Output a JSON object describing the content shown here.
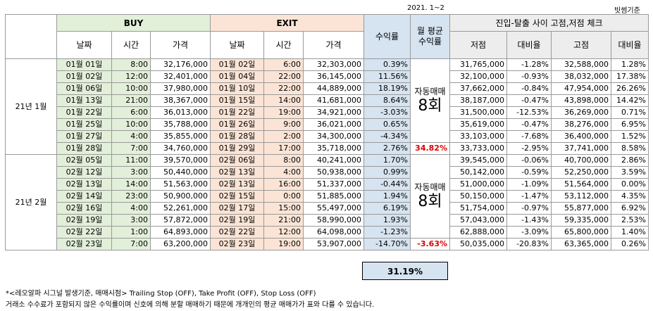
{
  "period_label": "2021. 1~2",
  "basis_label": "빗썸기준",
  "headers": {
    "buy": "BUY",
    "exit": "EXIT",
    "return": "수익률",
    "avg_return_line1": "월 평균",
    "avg_return_line2": "수익률",
    "check": "진입-탈출 사이 고점,저점 체크",
    "date": "날짜",
    "time": "시간",
    "price": "가격",
    "low": "저점",
    "ratio": "대비율",
    "high": "고점"
  },
  "months": [
    {
      "label": "21년 1월",
      "auto_label": "자동매매",
      "auto_count": "8회",
      "avg_return": "34.82%",
      "rows": [
        {
          "buy_date": "01월 01일",
          "buy_time": "8:00",
          "buy_price": "32,176,000",
          "exit_date": "01월 02일",
          "exit_time": "6:00",
          "exit_price": "32,303,000",
          "ret": "0.39%",
          "low": "31,765,000",
          "low_ratio": "-1.28%",
          "high": "32,588,000",
          "high_ratio": "1.28%"
        },
        {
          "buy_date": "01월 02일",
          "buy_time": "12:00",
          "buy_price": "32,401,000",
          "exit_date": "01월 04일",
          "exit_time": "22:00",
          "exit_price": "36,145,000",
          "ret": "11.56%",
          "low": "32,100,000",
          "low_ratio": "-0.93%",
          "high": "38,032,000",
          "high_ratio": "17.38%"
        },
        {
          "buy_date": "01월 06일",
          "buy_time": "10:00",
          "buy_price": "37,980,000",
          "exit_date": "01월 10일",
          "exit_time": "22:00",
          "exit_price": "44,889,000",
          "ret": "18.19%",
          "low": "37,662,000",
          "low_ratio": "-0.84%",
          "high": "47,954,000",
          "high_ratio": "26.26%"
        },
        {
          "buy_date": "01월 13일",
          "buy_time": "21:00",
          "buy_price": "38,367,000",
          "exit_date": "01월 15일",
          "exit_time": "14:00",
          "exit_price": "41,681,000",
          "ret": "8.64%",
          "low": "38,187,000",
          "low_ratio": "-0.47%",
          "high": "43,898,000",
          "high_ratio": "14.42%"
        },
        {
          "buy_date": "01월 22일",
          "buy_time": "6:00",
          "buy_price": "36,013,000",
          "exit_date": "01월 22일",
          "exit_time": "19:00",
          "exit_price": "34,921,000",
          "ret": "-3.03%",
          "low": "31,500,000",
          "low_ratio": "-12.53%",
          "high": "36,269,000",
          "high_ratio": "0.71%"
        },
        {
          "buy_date": "01월 25일",
          "buy_time": "10:00",
          "buy_price": "35,788,000",
          "exit_date": "01월 26일",
          "exit_time": "9:00",
          "exit_price": "36,021,000",
          "ret": "0.65%",
          "low": "35,619,000",
          "low_ratio": "-0.47%",
          "high": "38,276,000",
          "high_ratio": "6.95%"
        },
        {
          "buy_date": "01월 27일",
          "buy_time": "4:00",
          "buy_price": "35,855,000",
          "exit_date": "01월 28일",
          "exit_time": "2:00",
          "exit_price": "34,300,000",
          "ret": "-4.34%",
          "low": "33,103,000",
          "low_ratio": "-7.68%",
          "high": "36,400,000",
          "high_ratio": "1.52%"
        },
        {
          "buy_date": "01월 28일",
          "buy_time": "7:00",
          "buy_price": "34,760,000",
          "exit_date": "01월 29일",
          "exit_time": "17:00",
          "exit_price": "35,718,000",
          "ret": "2.76%",
          "low": "33,733,000",
          "low_ratio": "-2.95%",
          "high": "37,741,000",
          "high_ratio": "8.58%"
        }
      ]
    },
    {
      "label": "21년 2월",
      "auto_label": "자동매매",
      "auto_count": "8회",
      "avg_return": "-3.63%",
      "rows": [
        {
          "buy_date": "02월 05일",
          "buy_time": "11:00",
          "buy_price": "39,570,000",
          "exit_date": "02월 06일",
          "exit_time": "8:00",
          "exit_price": "40,241,000",
          "ret": "1.70%",
          "low": "39,545,000",
          "low_ratio": "-0.06%",
          "high": "40,700,000",
          "high_ratio": "2.86%"
        },
        {
          "buy_date": "02월 12일",
          "buy_time": "3:00",
          "buy_price": "50,440,000",
          "exit_date": "02월 13일",
          "exit_time": "4:00",
          "exit_price": "50,938,000",
          "ret": "0.99%",
          "low": "50,142,000",
          "low_ratio": "-0.59%",
          "high": "52,250,000",
          "high_ratio": "3.59%"
        },
        {
          "buy_date": "02월 13일",
          "buy_time": "14:00",
          "buy_price": "51,563,000",
          "exit_date": "02월 13일",
          "exit_time": "16:00",
          "exit_price": "51,337,000",
          "ret": "-0.44%",
          "low": "51,000,000",
          "low_ratio": "-1.09%",
          "high": "51,564,000",
          "high_ratio": "0.00%"
        },
        {
          "buy_date": "02월 14일",
          "buy_time": "23:00",
          "buy_price": "50,900,000",
          "exit_date": "02월 15일",
          "exit_time": "0:00",
          "exit_price": "51,885,000",
          "ret": "1.94%",
          "low": "50,150,000",
          "low_ratio": "-1.47%",
          "high": "53,112,000",
          "high_ratio": "4.35%"
        },
        {
          "buy_date": "02월 16일",
          "buy_time": "4:00",
          "buy_price": "52,261,000",
          "exit_date": "02월 17일",
          "exit_time": "15:00",
          "exit_price": "55,497,000",
          "ret": "6.19%",
          "low": "51,754,000",
          "low_ratio": "-0.97%",
          "high": "55,877,000",
          "high_ratio": "6.92%"
        },
        {
          "buy_date": "02월 19일",
          "buy_time": "3:00",
          "buy_price": "57,872,000",
          "exit_date": "02월 19일",
          "exit_time": "21:00",
          "exit_price": "58,990,000",
          "ret": "1.93%",
          "low": "57,043,000",
          "low_ratio": "-1.43%",
          "high": "59,335,000",
          "high_ratio": "2.53%"
        },
        {
          "buy_date": "02월 22일",
          "buy_time": "1:00",
          "buy_price": "64,893,000",
          "exit_date": "02월 22일",
          "exit_time": "12:00",
          "exit_price": "64,098,000",
          "ret": "-1.23%",
          "low": "62,888,000",
          "low_ratio": "-3.09%",
          "high": "65,800,000",
          "high_ratio": "1.40%"
        },
        {
          "buy_date": "02월 23일",
          "buy_time": "7:00",
          "buy_price": "63,200,000",
          "exit_date": "02월 23일",
          "exit_time": "19:00",
          "exit_price": "53,907,000",
          "ret": "-14.70%",
          "low": "50,035,000",
          "low_ratio": "-20.83%",
          "high": "63,365,000",
          "high_ratio": "0.26%"
        }
      ]
    }
  ],
  "total_return": "31.19%",
  "note1": "*<레오알파 시그널 발생기준, 매매시점> Trailing Stop (OFF), Take Profit (OFF), Stop Loss (OFF)",
  "note2": "거래소 수수료가 포함되지 않은 수익률이며 신호에 의해 분할 매매하기 때문에 개개인의 평균 매매가가 표와 다를 수 있습니다."
}
